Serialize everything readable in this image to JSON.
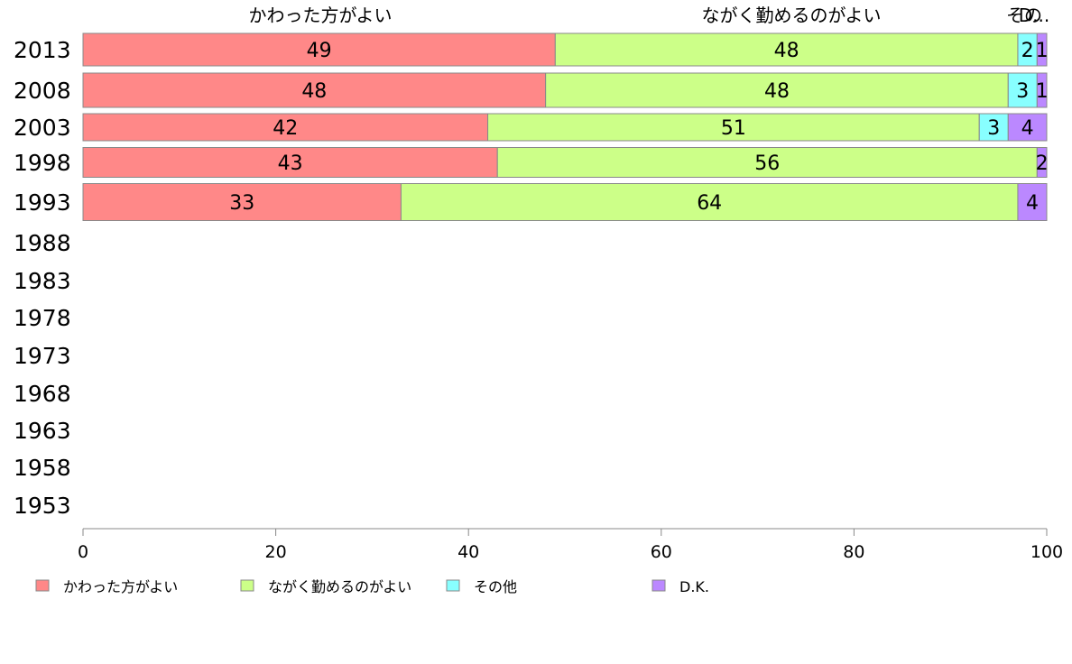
{
  "chart_data": {
    "type": "bar",
    "orientation": "horizontal",
    "stacked": true,
    "categories": [
      "2013",
      "2008",
      "2003",
      "1998",
      "1993",
      "1988",
      "1983",
      "1978",
      "1973",
      "1968",
      "1963",
      "1958",
      "1953"
    ],
    "series": [
      {
        "name": "かわった方がよい",
        "color": "#ff8888",
        "values": [
          49,
          48,
          42,
          43,
          33,
          null,
          null,
          null,
          null,
          null,
          null,
          null,
          null
        ]
      },
      {
        "name": "ながく勤めるのがよい",
        "color": "#ccff88",
        "values": [
          48,
          48,
          51,
          56,
          64,
          null,
          null,
          null,
          null,
          null,
          null,
          null,
          null
        ]
      },
      {
        "name": "その他",
        "color": "#88ffff",
        "values": [
          2,
          3,
          3,
          null,
          null,
          null,
          null,
          null,
          null,
          null,
          null,
          null,
          null
        ]
      },
      {
        "name": "D.K.",
        "color": "#bb88ff",
        "values": [
          1,
          1,
          4,
          2,
          4,
          null,
          null,
          null,
          null,
          null,
          null,
          null,
          null
        ]
      }
    ],
    "header_labels": [
      "かわった方がよい",
      "ながく勤めるのがよい",
      "その",
      "D..."
    ],
    "x_ticks": [
      "0",
      "20",
      "40",
      "60",
      "80",
      "100"
    ],
    "xlim": [
      0,
      100
    ],
    "legend_position": "bottom",
    "grid": false
  }
}
